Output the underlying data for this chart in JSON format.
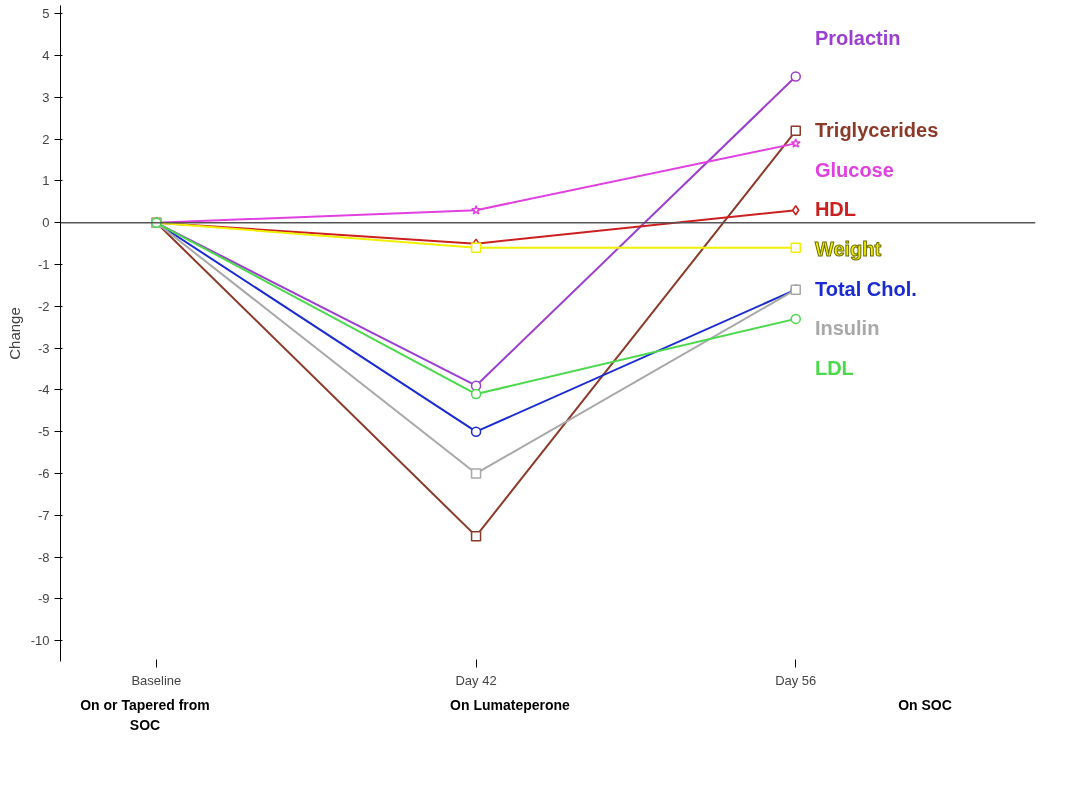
{
  "chart_data": {
    "type": "line",
    "ylabel": "Change",
    "categories": [
      "Baseline",
      "Day 42",
      "Day 56"
    ],
    "ylim": [
      -10.5,
      5.2
    ],
    "yticks": [
      -10,
      -9,
      -8,
      -7,
      -6,
      -5,
      -4,
      -3,
      -2,
      -1,
      0,
      1,
      2,
      3,
      4,
      5
    ],
    "grid": false,
    "ref_lines": [
      {
        "axis": "y",
        "value": 0,
        "color": "#555555"
      }
    ],
    "annotations": [
      "On or Tapered from SOC",
      "On Lumateperone",
      "On SOC"
    ],
    "series": [
      {
        "name": "Prolactin",
        "color": "#9b3fd0",
        "values": [
          0,
          -3.9,
          3.5
        ],
        "marker": "circle"
      },
      {
        "name": "Triglycerides",
        "color": "#8b3a2a",
        "values": [
          0,
          -7.5,
          2.2
        ],
        "marker": "square"
      },
      {
        "name": "Glucose",
        "color": "#e040e0",
        "values": [
          0,
          0.3,
          1.9
        ],
        "marker": "star"
      },
      {
        "name": "HDL",
        "color": "#cc2020",
        "values": [
          0,
          -0.5,
          0.3
        ],
        "marker": "diamond"
      },
      {
        "name": "Weight",
        "color": "#f0f000",
        "values": [
          0,
          -0.6,
          -0.6
        ],
        "marker": "square"
      },
      {
        "name": "Total Chol.",
        "color": "#1a2bd0",
        "values": [
          0,
          -5.0,
          -1.6
        ],
        "marker": "circle"
      },
      {
        "name": "Insulin",
        "color": "#a8a8a8",
        "values": [
          0,
          -6.0,
          -1.6
        ],
        "marker": "square"
      },
      {
        "name": "LDL",
        "color": "#4cd84c",
        "values": [
          0,
          -4.1,
          -2.3
        ],
        "marker": "circle"
      }
    ]
  }
}
